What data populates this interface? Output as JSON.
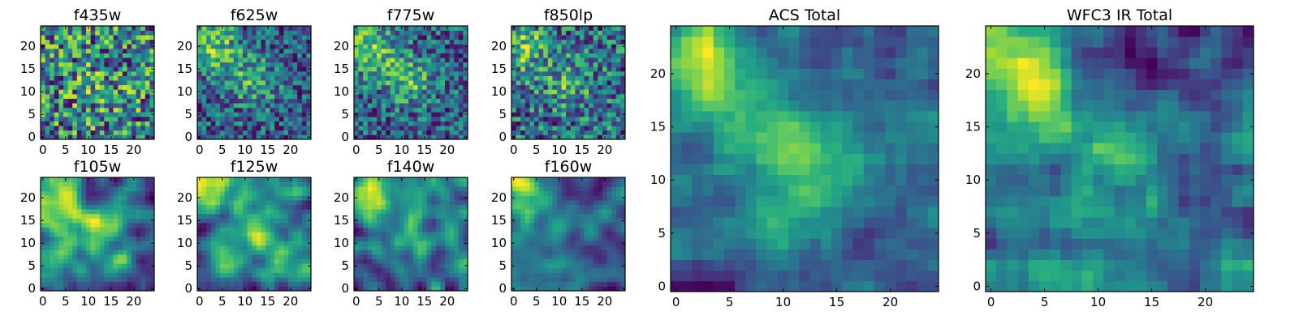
{
  "chart_data": [
    {
      "type": "heatmap",
      "title": "f435w",
      "xticks": [
        "0",
        "5",
        "10",
        "15",
        "20"
      ],
      "yticks": [
        "0",
        "5",
        "10",
        "15",
        "20"
      ],
      "grid_size": 25,
      "xlim": [
        -0.5,
        24.5
      ],
      "ylim": [
        -0.5,
        24.5
      ],
      "colormap": "viridis",
      "pattern": "noisy",
      "seed": 11,
      "blob": [
        [
          12,
          11,
          0.1,
          4
        ]
      ]
    },
    {
      "type": "heatmap",
      "title": "f625w",
      "xticks": [
        "0",
        "5",
        "10",
        "15",
        "20"
      ],
      "yticks": [
        "0",
        "5",
        "10",
        "15",
        "20"
      ],
      "grid_size": 25,
      "xlim": [
        -0.5,
        24.5
      ],
      "ylim": [
        -0.5,
        24.5
      ],
      "colormap": "viridis",
      "pattern": "noisy",
      "seed": 23,
      "blob": [
        [
          2,
          21,
          0.45,
          4
        ],
        [
          12,
          12,
          0.4,
          3.5
        ],
        [
          6,
          17,
          0.25,
          4
        ]
      ]
    },
    {
      "type": "heatmap",
      "title": "f775w",
      "xticks": [
        "0",
        "5",
        "10",
        "15",
        "20"
      ],
      "yticks": [
        "0",
        "5",
        "10",
        "15",
        "20"
      ],
      "grid_size": 25,
      "xlim": [
        -0.5,
        24.5
      ],
      "ylim": [
        -0.5,
        24.5
      ],
      "colormap": "viridis",
      "pattern": "noisy",
      "seed": 37,
      "blob": [
        [
          2,
          21,
          0.45,
          4
        ],
        [
          12,
          12,
          0.45,
          3.5
        ],
        [
          6,
          17,
          0.25,
          4
        ]
      ]
    },
    {
      "type": "heatmap",
      "title": "f850lp",
      "xticks": [
        "0",
        "5",
        "10",
        "15",
        "20"
      ],
      "yticks": [
        "0",
        "5",
        "10",
        "15",
        "20"
      ],
      "grid_size": 25,
      "xlim": [
        -0.5,
        24.5
      ],
      "ylim": [
        -0.5,
        24.5
      ],
      "colormap": "viridis",
      "pattern": "noisy",
      "seed": 41,
      "blob": [
        [
          2,
          20,
          0.4,
          4
        ],
        [
          12,
          12,
          0.3,
          3.5
        ]
      ]
    },
    {
      "type": "heatmap",
      "title": "f105w",
      "xticks": [
        "0",
        "5",
        "10",
        "15",
        "20"
      ],
      "yticks": [
        "0",
        "5",
        "10",
        "15",
        "20"
      ],
      "grid_size": 25,
      "xlim": [
        -0.5,
        24.5
      ],
      "ylim": [
        -0.5,
        24.5
      ],
      "colormap": "viridis",
      "pattern": "smooth",
      "seed": 53,
      "blob": [
        [
          2,
          20,
          0.4,
          4
        ],
        [
          12,
          13,
          0.3,
          4
        ]
      ]
    },
    {
      "type": "heatmap",
      "title": "f125w",
      "xticks": [
        "0",
        "5",
        "10",
        "15",
        "20"
      ],
      "yticks": [
        "0",
        "5",
        "10",
        "15",
        "20"
      ],
      "grid_size": 25,
      "xlim": [
        -0.5,
        24.5
      ],
      "ylim": [
        -0.5,
        24.5
      ],
      "colormap": "viridis",
      "pattern": "smooth",
      "seed": 67,
      "blob": [
        [
          2,
          21,
          0.45,
          4
        ],
        [
          12,
          13,
          0.3,
          4
        ],
        [
          22,
          5,
          0.25,
          3
        ]
      ]
    },
    {
      "type": "heatmap",
      "title": "f140w",
      "xticks": [
        "0",
        "5",
        "10",
        "15",
        "20"
      ],
      "yticks": [
        "0",
        "5",
        "10",
        "15",
        "20"
      ],
      "grid_size": 25,
      "xlim": [
        -0.5,
        24.5
      ],
      "ylim": [
        -0.5,
        24.5
      ],
      "colormap": "viridis",
      "pattern": "smooth",
      "seed": 79,
      "blob": [
        [
          2,
          21,
          0.5,
          4
        ],
        [
          12,
          13,
          0.3,
          4
        ]
      ]
    },
    {
      "type": "heatmap",
      "title": "f160w",
      "xticks": [
        "0",
        "5",
        "10",
        "15",
        "20"
      ],
      "yticks": [
        "0",
        "5",
        "10",
        "15",
        "20"
      ],
      "grid_size": 25,
      "xlim": [
        -0.5,
        24.5
      ],
      "ylim": [
        -0.5,
        24.5
      ],
      "colormap": "viridis",
      "pattern": "smooth",
      "seed": 83,
      "blob": [
        [
          2,
          21,
          0.5,
          4
        ],
        [
          12,
          13,
          0.2,
          4
        ],
        [
          14,
          23,
          -0.3,
          4
        ]
      ]
    },
    {
      "type": "heatmap",
      "title": "ACS Total",
      "xticks": [
        "0",
        "5",
        "10",
        "15",
        "20"
      ],
      "yticks": [
        "0",
        "5",
        "10",
        "15",
        "20"
      ],
      "grid_size": 25,
      "xlim": [
        -0.5,
        24.5
      ],
      "ylim": [
        -0.5,
        24.5
      ],
      "colormap": "viridis",
      "pattern": "medium",
      "seed": 97,
      "blob": [
        [
          1,
          22,
          0.55,
          4
        ],
        [
          5,
          18,
          0.35,
          3.5
        ],
        [
          12,
          12,
          0.5,
          3.5
        ],
        [
          9,
          6,
          0.1,
          5
        ]
      ]
    },
    {
      "type": "heatmap",
      "title": "WFC3 IR Total",
      "xticks": [
        "0",
        "5",
        "10",
        "15",
        "20"
      ],
      "yticks": [
        "0",
        "5",
        "10",
        "15",
        "20"
      ],
      "grid_size": 25,
      "xlim": [
        -0.5,
        24.5
      ],
      "ylim": [
        -0.5,
        24.5
      ],
      "colormap": "viridis",
      "pattern": "medium",
      "seed": 103,
      "blob": [
        [
          1,
          22,
          0.6,
          4
        ],
        [
          5,
          18,
          0.3,
          3
        ],
        [
          11,
          13,
          0.35,
          4
        ],
        [
          14,
          23,
          -0.35,
          4
        ],
        [
          8,
          3,
          0.15,
          6
        ]
      ]
    }
  ]
}
